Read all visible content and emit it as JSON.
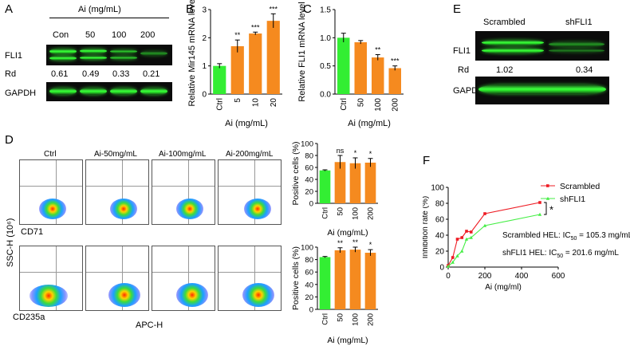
{
  "panels": {
    "A": "A",
    "B": "B",
    "C": "C",
    "D": "D",
    "E": "E",
    "F": "F"
  },
  "panelA": {
    "title": "Ai (mg/mL)",
    "lanes": [
      "Con",
      "50",
      "100",
      "200"
    ],
    "row1": "FLI1",
    "rd_label": "Rd",
    "rd_values": [
      "0.61",
      "0.49",
      "0.33",
      "0.21"
    ],
    "row2": "GAPDH"
  },
  "panelE": {
    "lanes": [
      "Scrambled",
      "shFLI1"
    ],
    "row1": "FLI1",
    "rd_label": "Rd",
    "rd_values": [
      "1.02",
      "0.34"
    ],
    "row2": "GAPDH"
  },
  "panelD": {
    "columns": [
      "Ctrl",
      "Ai-50mg/mL",
      "Ai-100mg/mL",
      "Ai-200mg/mL"
    ],
    "row1_marker": "CD71",
    "row2_marker": "CD235a",
    "y_axis": "SSC-H (10⁶)",
    "x_axis": "APC-H"
  },
  "colors": {
    "green_bar": "#33ee33",
    "orange_bar": "#f58a1f",
    "red_line": "#ee1c24",
    "green_line": "#44ee44"
  },
  "chart_data": [
    {
      "id": "B",
      "type": "bar",
      "categories": [
        "Ctrl",
        "5",
        "10",
        "20"
      ],
      "values": [
        1.0,
        1.7,
        2.15,
        2.6
      ],
      "errors": [
        0.08,
        0.22,
        0.05,
        0.25
      ],
      "significance": [
        "",
        "**",
        "***",
        "***"
      ],
      "ylabel": "Relative Mir145 mRNA level",
      "xlabel": "Ai (mg/mL)",
      "ylim": [
        0,
        3
      ],
      "yticks": [
        0,
        1,
        2,
        3
      ]
    },
    {
      "id": "C",
      "type": "bar",
      "categories": [
        "Ctrl",
        "50",
        "100",
        "200"
      ],
      "values": [
        1.0,
        0.92,
        0.65,
        0.46
      ],
      "errors": [
        0.08,
        0.03,
        0.05,
        0.04
      ],
      "significance": [
        "",
        "",
        "**",
        "***"
      ],
      "ylabel": "Relative FLI1 mRNA level",
      "xlabel": "Ai (mg/mL)",
      "ylim": [
        0,
        1.5
      ],
      "yticks": [
        0.0,
        0.5,
        1.0,
        1.5
      ]
    },
    {
      "id": "D1",
      "type": "bar",
      "categories": [
        "Ctrl",
        "50",
        "100",
        "200"
      ],
      "values": [
        55,
        69,
        67,
        68
      ],
      "errors": [
        1,
        11,
        9,
        7
      ],
      "significance": [
        "",
        "ns",
        "*",
        "*"
      ],
      "ylabel": "Positive cells (%)",
      "xlabel": "Ai (mg/mL)",
      "ylim": [
        0,
        100
      ],
      "yticks": [
        0,
        20,
        40,
        60,
        80,
        100
      ]
    },
    {
      "id": "D2",
      "type": "bar",
      "categories": [
        "Ctrl",
        "50",
        "100",
        "200"
      ],
      "values": [
        84,
        95,
        96,
        91
      ],
      "errors": [
        1,
        4,
        4,
        5
      ],
      "significance": [
        "",
        "**",
        "**",
        "*"
      ],
      "ylabel": "Positive cells (%)",
      "xlabel": "Ai (mg/mL)",
      "ylim": [
        0,
        100
      ],
      "yticks": [
        0,
        20,
        40,
        60,
        80,
        100
      ]
    },
    {
      "id": "F",
      "type": "scatter",
      "series": [
        {
          "name": "Scrambled",
          "x": [
            0,
            25,
            50,
            75,
            100,
            125,
            200,
            500
          ],
          "y": [
            2,
            12,
            35,
            37,
            45,
            44,
            67,
            81
          ]
        },
        {
          "name": "shFLI1",
          "x": [
            0,
            25,
            50,
            75,
            100,
            125,
            200,
            500
          ],
          "y": [
            1,
            6,
            14,
            20,
            35,
            37,
            52,
            66
          ]
        }
      ],
      "xlabel": "Ai (mg/ml)",
      "ylabel": "Inhibition rate (%)",
      "xlim": [
        0,
        600
      ],
      "xticks": [
        0,
        200,
        400,
        600
      ],
      "ylim": [
        0,
        100
      ],
      "yticks": [
        0,
        20,
        40,
        60,
        80,
        100
      ],
      "significance": "*",
      "annotations": [
        "Scrambled HEL: IC50 = 105.3 mg/mL",
        "shFLI1 HEL: IC50 = 201.6 mg/mL"
      ],
      "annot1": {
        "pre": "Scrambled HEL: IC",
        "sub": "50",
        "post": " = 105.3 mg/mL"
      },
      "annot2": {
        "pre": "shFLI1 HEL: IC",
        "sub": "50",
        "post": " = 201.6 mg/mL"
      }
    }
  ]
}
